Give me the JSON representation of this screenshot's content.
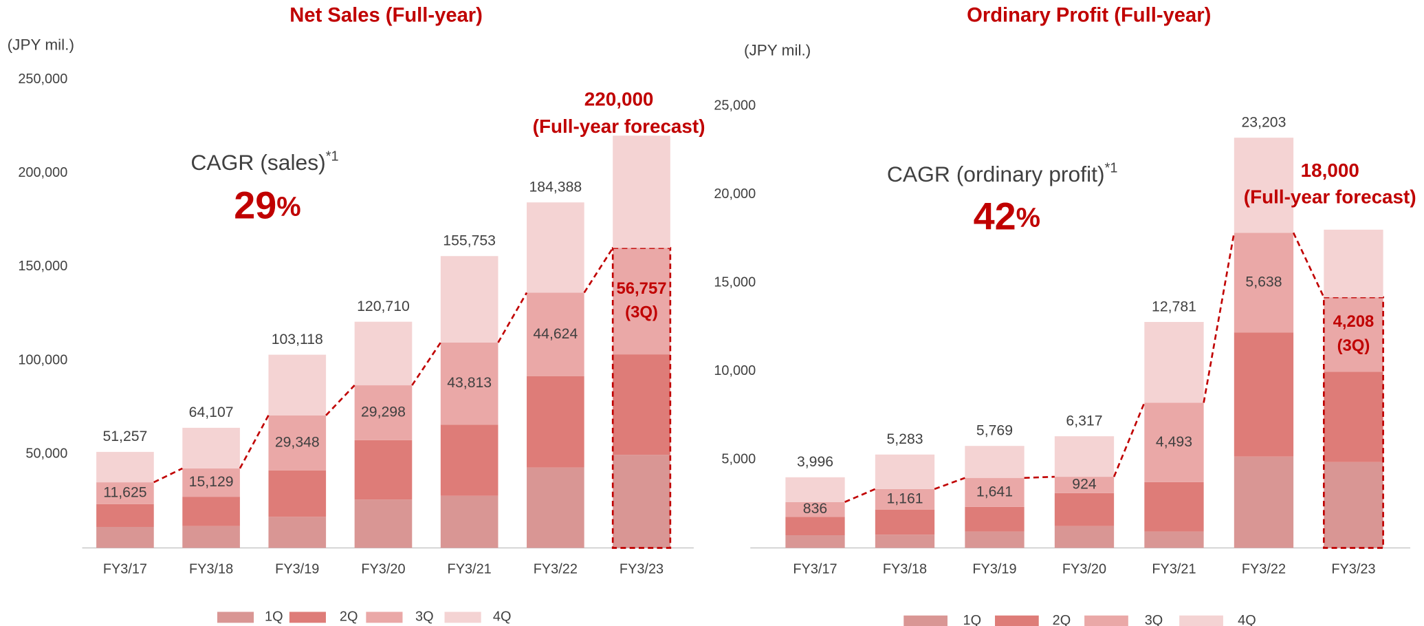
{
  "chart_data": [
    {
      "type": "bar",
      "stacked": true,
      "title": "Net Sales (Full-year)",
      "y_label": "(JPY mil.)",
      "categories": [
        "FY3/17",
        "FY3/18",
        "FY3/19",
        "FY3/20",
        "FY3/21",
        "FY3/22",
        "FY3/23"
      ],
      "series": [
        {
          "name": "1Q",
          "color": "#d99694",
          "values": [
            11200,
            11700,
            16600,
            25800,
            27800,
            42900,
            49700
          ]
        },
        {
          "name": "2Q",
          "color": "#de7c78",
          "values": [
            12200,
            15600,
            24800,
            31700,
            38000,
            48700,
            53600
          ]
        },
        {
          "name": "3Q",
          "color": "#eaa8a7",
          "values": [
            11625,
            15129,
            29348,
            29298,
            43813,
            44624,
            56757
          ],
          "value_labels": [
            "11,625",
            "15,129",
            "29,348",
            "29,298",
            "43,813",
            "44,624",
            "56,757"
          ]
        },
        {
          "name": "4Q",
          "color": "#f4d3d3",
          "values": [
            16232,
            21678,
            32370,
            33912,
            46140,
            48164,
            59943
          ]
        }
      ],
      "totals": [
        51257,
        64107,
        103118,
        120710,
        155753,
        184388,
        220000
      ],
      "total_labels": [
        "51,257",
        "64,107",
        "103,118",
        "120,710",
        "155,753",
        "184,388",
        "220,000"
      ],
      "forecast_note": "(Full-year forecast)",
      "quarter_note": "(3Q)",
      "cagr": {
        "label": "CAGR (sales)",
        "note": "*1",
        "value": 29,
        "unit": "%"
      },
      "ylim": [
        0,
        250000
      ],
      "yticks": [
        {
          "value": 50000,
          "label": "50,000"
        },
        {
          "value": 100000,
          "label": "100,000"
        },
        {
          "value": 150000,
          "label": "150,000"
        },
        {
          "value": 200000,
          "label": "200,000"
        },
        {
          "value": 250000,
          "label": "250,000"
        }
      ],
      "grid": false,
      "legend": "bottom"
    },
    {
      "type": "bar",
      "stacked": true,
      "title": "Ordinary Profit (Full-year)",
      "y_label": "(JPY mil.)",
      "categories": [
        "FY3/17",
        "FY3/18",
        "FY3/19",
        "FY3/20",
        "FY3/21",
        "FY3/22",
        "FY3/23"
      ],
      "series": [
        {
          "name": "1Q",
          "color": "#d99694",
          "values": [
            720,
            750,
            930,
            1240,
            930,
            5165,
            4855
          ]
        },
        {
          "name": "2Q",
          "color": "#de7c78",
          "values": [
            1040,
            1420,
            1390,
            1860,
            2790,
            7025,
            5115
          ]
        },
        {
          "name": "3Q",
          "color": "#eaa8a7",
          "values": [
            836,
            1161,
            1641,
            924,
            4493,
            5638,
            4208
          ],
          "value_labels": [
            "836",
            "1,161",
            "1,641",
            "924",
            "4,493",
            "5,638",
            "4,208"
          ]
        },
        {
          "name": "4Q",
          "color": "#f4d3d3",
          "values": [
            1400,
            1952,
            1808,
            2293,
            4568,
            5375,
            3822
          ]
        }
      ],
      "totals": [
        3996,
        5283,
        5769,
        6317,
        12781,
        23203,
        18000
      ],
      "total_labels": [
        "3,996",
        "5,283",
        "5,769",
        "6,317",
        "12,781",
        "23,203",
        "18,000"
      ],
      "forecast_note": "(Full-year forecast)",
      "quarter_note": "(3Q)",
      "cagr": {
        "label": "CAGR (ordinary profit)",
        "note": "*1",
        "value": 42,
        "unit": "%"
      },
      "ylim": [
        0,
        25000
      ],
      "yticks": [
        {
          "value": 5000,
          "label": "5,000"
        },
        {
          "value": 10000,
          "label": "10,000"
        },
        {
          "value": 15000,
          "label": "15,000"
        },
        {
          "value": 20000,
          "label": "20,000"
        },
        {
          "value": 25000,
          "label": "25,000"
        }
      ],
      "grid": false,
      "legend": "bottom"
    }
  ]
}
